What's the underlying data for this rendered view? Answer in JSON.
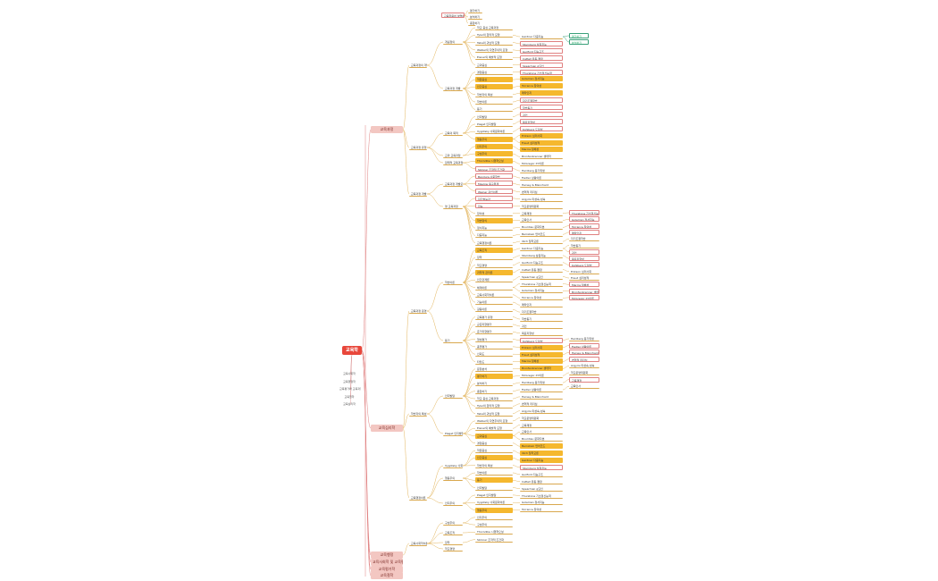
{
  "root": "교육학",
  "left_items": [
    "교육사회학",
    "교육행정학",
    "교육평가와 교육과정",
    "교육철학",
    "교육심리학"
  ],
  "top_header": "교육학용어 설명하기",
  "top_options": [
    "평가하기",
    "분석하기",
    "종합하기"
  ],
  "categories": [
    "교육과정",
    "교육심리학",
    "교육행정",
    "교육사회학 및 교육평가",
    "교육평가학",
    "교육철학"
  ],
  "labels": [
    "교육과정의 개념",
    "교육과정 유형",
    "교육과정 개발",
    "교육과정 운영",
    "개념정의",
    "교육과정 개발",
    "교육의 목적",
    "교과 교육과정",
    "잠재적 교육과정",
    "교육과정 개발모형",
    "영 교육과정",
    "학교 중심 교육과정",
    "Tyler의 합리적 모형",
    "Taba의 귀납적 모형",
    "Walker의 자연주의적 모형",
    "Eisner의 예술적 모형",
    "교과중심",
    "경험중심",
    "학문중심",
    "인간중심",
    "학습자의 특성",
    "학습이론",
    "동기",
    "인지발달",
    "Piaget 인지발달",
    "Vygotsky 사회문화이론",
    "행동주의",
    "인지주의",
    "구성주의",
    "Thorndike 시행착오설",
    "Skinner 조작적 조건화",
    "Bandura 사회학습",
    "Maslow 욕구위계",
    "Weiner 귀인이론",
    "자기효능감",
    "지능",
    "창의성",
    "학습양식",
    "정서지능",
    "다중지능",
    "교육행정이론",
    "교육조직",
    "장학",
    "학교경영",
    "과학적 관리론",
    "인간관계론",
    "체제이론",
    "교육사회학이론",
    "기능이론",
    "갈등이론",
    "교육평가 유형",
    "규준지향평가",
    "준거지향평가",
    "형성평가",
    "총괄평가",
    "신뢰도",
    "타당도",
    "문항분석",
    "평가하기",
    "분석하기",
    "종합하기"
  ],
  "right_items": [
    "Gardner 다중지능",
    "Sternberg 삼원지능",
    "Guilford 지능구조",
    "Cattell 유동·결정",
    "Spearman g요인",
    "Thurstone 기초정신능력",
    "Goleman 정서지능",
    "Torrance 창의성",
    "메타인지",
    "자기조절학습",
    "학습동기",
    "귀인",
    "목표지향성",
    "Kohlberg 도덕성",
    "Erikson 심리사회",
    "Freud 심리성적",
    "Marcia 정체성",
    "Bronfenbrenner 생태학",
    "McGregor XY이론",
    "Herzberg 동기위생",
    "Fiedler 상황이론",
    "Hersey & Blanchard",
    "변혁적 리더십",
    "Argyris 미성숙-성숙",
    "학교운영위원회",
    "교육재정",
    "교육인사",
    "Bourdieu 문화자본",
    "Bernstein 언어코드",
    "Illich 탈학교론"
  ],
  "tags": [
    "평가하기",
    "분석하기"
  ]
}
